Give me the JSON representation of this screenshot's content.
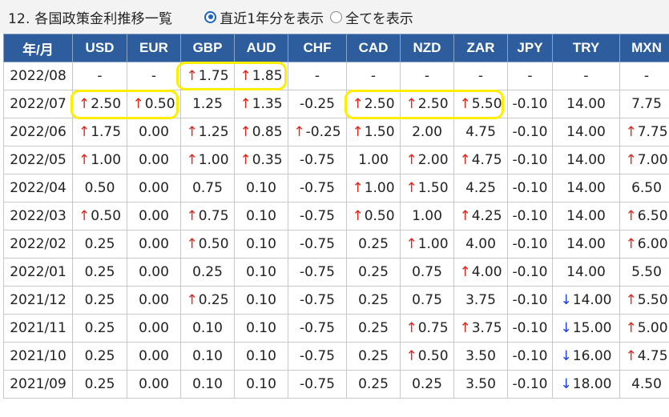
{
  "title": "12. 各国政策金利推移一覧",
  "filter": {
    "option1": "直近1年分を表示",
    "option2": "全てを表示",
    "selected": "option1"
  },
  "headers": [
    "年/月",
    "USD",
    "EUR",
    "GBP",
    "AUD",
    "CHF",
    "CAD",
    "NZD",
    "ZAR",
    "JPY",
    "TRY",
    "MXN"
  ],
  "rows": [
    {
      "date": "2022/08",
      "cells": [
        {
          "v": "-"
        },
        {
          "v": "-"
        },
        {
          "v": "1.75",
          "t": "up"
        },
        {
          "v": "1.85",
          "t": "up"
        },
        {
          "v": "-"
        },
        {
          "v": "-"
        },
        {
          "v": "-"
        },
        {
          "v": "-"
        },
        {
          "v": "-"
        },
        {
          "v": "-"
        },
        {
          "v": "-"
        }
      ]
    },
    {
      "date": "2022/07",
      "cells": [
        {
          "v": "2.50",
          "t": "up"
        },
        {
          "v": "0.50",
          "t": "up"
        },
        {
          "v": "1.25"
        },
        {
          "v": "1.35",
          "t": "up"
        },
        {
          "v": "-0.25"
        },
        {
          "v": "2.50",
          "t": "up"
        },
        {
          "v": "2.50",
          "t": "up"
        },
        {
          "v": "5.50",
          "t": "up"
        },
        {
          "v": "-0.10"
        },
        {
          "v": "14.00"
        },
        {
          "v": "7.75"
        }
      ]
    },
    {
      "date": "2022/06",
      "cells": [
        {
          "v": "1.75",
          "t": "up"
        },
        {
          "v": "0.00"
        },
        {
          "v": "1.25",
          "t": "up"
        },
        {
          "v": "0.85",
          "t": "up"
        },
        {
          "v": "-0.25",
          "t": "up"
        },
        {
          "v": "1.50",
          "t": "up"
        },
        {
          "v": "2.00"
        },
        {
          "v": "4.75"
        },
        {
          "v": "-0.10"
        },
        {
          "v": "14.00"
        },
        {
          "v": "7.75",
          "t": "up"
        }
      ]
    },
    {
      "date": "2022/05",
      "cells": [
        {
          "v": "1.00",
          "t": "up"
        },
        {
          "v": "0.00"
        },
        {
          "v": "1.00",
          "t": "up"
        },
        {
          "v": "0.35",
          "t": "up"
        },
        {
          "v": "-0.75"
        },
        {
          "v": "1.00"
        },
        {
          "v": "2.00",
          "t": "up"
        },
        {
          "v": "4.75",
          "t": "up"
        },
        {
          "v": "-0.10"
        },
        {
          "v": "14.00"
        },
        {
          "v": "7.00",
          "t": "up"
        }
      ]
    },
    {
      "date": "2022/04",
      "cells": [
        {
          "v": "0.50"
        },
        {
          "v": "0.00"
        },
        {
          "v": "0.75"
        },
        {
          "v": "0.10"
        },
        {
          "v": "-0.75"
        },
        {
          "v": "1.00",
          "t": "up"
        },
        {
          "v": "1.50",
          "t": "up"
        },
        {
          "v": "4.25"
        },
        {
          "v": "-0.10"
        },
        {
          "v": "14.00"
        },
        {
          "v": "6.50"
        }
      ]
    },
    {
      "date": "2022/03",
      "cells": [
        {
          "v": "0.50",
          "t": "up"
        },
        {
          "v": "0.00"
        },
        {
          "v": "0.75",
          "t": "up"
        },
        {
          "v": "0.10"
        },
        {
          "v": "-0.75"
        },
        {
          "v": "0.50",
          "t": "up"
        },
        {
          "v": "1.00"
        },
        {
          "v": "4.25",
          "t": "up"
        },
        {
          "v": "-0.10"
        },
        {
          "v": "14.00"
        },
        {
          "v": "6.50",
          "t": "up"
        }
      ]
    },
    {
      "date": "2022/02",
      "cells": [
        {
          "v": "0.25"
        },
        {
          "v": "0.00"
        },
        {
          "v": "0.50",
          "t": "up"
        },
        {
          "v": "0.10"
        },
        {
          "v": "-0.75"
        },
        {
          "v": "0.25"
        },
        {
          "v": "1.00",
          "t": "up"
        },
        {
          "v": "4.00"
        },
        {
          "v": "-0.10"
        },
        {
          "v": "14.00"
        },
        {
          "v": "6.00",
          "t": "up"
        }
      ]
    },
    {
      "date": "2022/01",
      "cells": [
        {
          "v": "0.25"
        },
        {
          "v": "0.00"
        },
        {
          "v": "0.25"
        },
        {
          "v": "0.10"
        },
        {
          "v": "-0.75"
        },
        {
          "v": "0.25"
        },
        {
          "v": "0.75"
        },
        {
          "v": "4.00",
          "t": "up"
        },
        {
          "v": "-0.10"
        },
        {
          "v": "14.00"
        },
        {
          "v": "5.50"
        }
      ]
    },
    {
      "date": "2021/12",
      "cells": [
        {
          "v": "0.25"
        },
        {
          "v": "0.00"
        },
        {
          "v": "0.25",
          "t": "up"
        },
        {
          "v": "0.10"
        },
        {
          "v": "-0.75"
        },
        {
          "v": "0.25"
        },
        {
          "v": "0.75"
        },
        {
          "v": "3.75"
        },
        {
          "v": "-0.10"
        },
        {
          "v": "14.00",
          "t": "down"
        },
        {
          "v": "5.50",
          "t": "up"
        }
      ]
    },
    {
      "date": "2021/11",
      "cells": [
        {
          "v": "0.25"
        },
        {
          "v": "0.00"
        },
        {
          "v": "0.10"
        },
        {
          "v": "0.10"
        },
        {
          "v": "-0.75"
        },
        {
          "v": "0.25"
        },
        {
          "v": "0.75",
          "t": "up"
        },
        {
          "v": "3.75",
          "t": "up"
        },
        {
          "v": "-0.10"
        },
        {
          "v": "15.00",
          "t": "down"
        },
        {
          "v": "5.00",
          "t": "up"
        }
      ]
    },
    {
      "date": "2021/10",
      "cells": [
        {
          "v": "0.25"
        },
        {
          "v": "0.00"
        },
        {
          "v": "0.10"
        },
        {
          "v": "0.10"
        },
        {
          "v": "-0.75"
        },
        {
          "v": "0.25"
        },
        {
          "v": "0.50",
          "t": "up"
        },
        {
          "v": "3.50"
        },
        {
          "v": "-0.10"
        },
        {
          "v": "16.00",
          "t": "down"
        },
        {
          "v": "4.75",
          "t": "up"
        }
      ]
    },
    {
      "date": "2021/09",
      "cells": [
        {
          "v": "0.25"
        },
        {
          "v": "0.00"
        },
        {
          "v": "0.10"
        },
        {
          "v": "0.10"
        },
        {
          "v": "-0.75"
        },
        {
          "v": "0.25"
        },
        {
          "v": "0.25"
        },
        {
          "v": "3.50"
        },
        {
          "v": "-0.10"
        },
        {
          "v": "18.00",
          "t": "down"
        },
        {
          "v": "4.50"
        }
      ]
    }
  ],
  "arrows": {
    "up": "↑",
    "down": "↓"
  },
  "colors": {
    "header_bg": "#2e5d9e",
    "up": "#e0251b",
    "down": "#1a3ed6",
    "highlight": "#ffee00"
  }
}
